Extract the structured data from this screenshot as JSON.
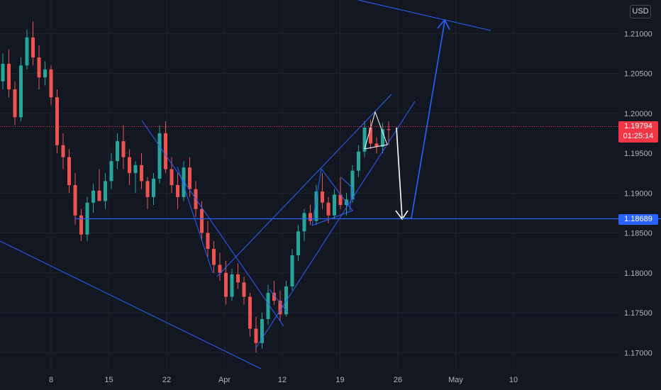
{
  "chart_data": {
    "type": "candlestick",
    "y_axis": {
      "currency": "USD",
      "ylim": [
        1.1678,
        1.2142
      ],
      "ticks": [
        "1.21000",
        "1.20500",
        "1.20000",
        "1.19500",
        "1.19000",
        "1.18500",
        "1.18000",
        "1.17500",
        "1.17000"
      ]
    },
    "x_axis": {
      "ticks": [
        "8",
        "15",
        "22",
        "Apr",
        "12",
        "19",
        "26",
        "May",
        "10"
      ]
    },
    "last_price": {
      "value": "1.19794",
      "countdown": "01:25:14",
      "color": "#f23645"
    },
    "level_price": {
      "value": "1.18689",
      "color": "#2962ff"
    },
    "colors": {
      "up": "#26a69a",
      "down": "#ef5350",
      "drawing": "#2962ff",
      "projection": "#ffffff",
      "background": "#131722"
    },
    "ohlc_approx": [
      [
        1.204,
        1.2075,
        1.203,
        1.2062
      ],
      [
        1.2062,
        1.208,
        1.202,
        1.203
      ],
      [
        1.203,
        1.204,
        1.1985,
        1.1995
      ],
      [
        1.1995,
        1.207,
        1.199,
        1.206
      ],
      [
        1.206,
        1.2105,
        1.2055,
        1.2095
      ],
      [
        1.2095,
        1.2115,
        1.206,
        1.207
      ],
      [
        1.207,
        1.2085,
        1.203,
        1.2045
      ],
      [
        1.2045,
        1.2065,
        1.2035,
        1.2055
      ],
      [
        1.2055,
        1.206,
        1.201,
        1.202
      ],
      [
        1.202,
        1.203,
        1.195,
        1.196
      ],
      [
        1.196,
        1.1975,
        1.193,
        1.1945
      ],
      [
        1.1945,
        1.1955,
        1.19,
        1.191
      ],
      [
        1.191,
        1.1925,
        1.186,
        1.1872
      ],
      [
        1.1872,
        1.188,
        1.184,
        1.1848
      ],
      [
        1.1848,
        1.1895,
        1.184,
        1.1888
      ],
      [
        1.1888,
        1.1912,
        1.1875,
        1.1903
      ],
      [
        1.1903,
        1.193,
        1.189,
        1.189
      ],
      [
        1.189,
        1.1925,
        1.188,
        1.1915
      ],
      [
        1.1915,
        1.195,
        1.1905,
        1.194
      ],
      [
        1.194,
        1.1975,
        1.193,
        1.1965
      ],
      [
        1.1965,
        1.1985,
        1.193,
        1.1945
      ],
      [
        1.1945,
        1.1955,
        1.191,
        1.1925
      ],
      [
        1.1925,
        1.194,
        1.19,
        1.1935
      ],
      [
        1.1935,
        1.195,
        1.1905,
        1.1915
      ],
      [
        1.1915,
        1.192,
        1.188,
        1.1895
      ],
      [
        1.1895,
        1.1925,
        1.1885,
        1.1918
      ],
      [
        1.1918,
        1.1985,
        1.1912,
        1.1975
      ],
      [
        1.1975,
        1.199,
        1.1925,
        1.193
      ],
      [
        1.193,
        1.1945,
        1.19,
        1.191
      ],
      [
        1.191,
        1.1925,
        1.188,
        1.1895
      ],
      [
        1.1895,
        1.194,
        1.189,
        1.1932
      ],
      [
        1.1932,
        1.1945,
        1.1895,
        1.1905
      ],
      [
        1.1905,
        1.1915,
        1.187,
        1.188
      ],
      [
        1.188,
        1.189,
        1.184,
        1.185
      ],
      [
        1.185,
        1.1865,
        1.182,
        1.183
      ],
      [
        1.183,
        1.184,
        1.18,
        1.181
      ],
      [
        1.181,
        1.1825,
        1.179,
        1.18
      ],
      [
        1.18,
        1.1815,
        1.176,
        1.177
      ],
      [
        1.177,
        1.1805,
        1.1765,
        1.1798
      ],
      [
        1.1798,
        1.1812,
        1.178,
        1.1788
      ],
      [
        1.1788,
        1.1795,
        1.176,
        1.177
      ],
      [
        1.177,
        1.1775,
        1.172,
        1.173
      ],
      [
        1.173,
        1.1745,
        1.17,
        1.1712
      ],
      [
        1.1712,
        1.175,
        1.1705,
        1.1742
      ],
      [
        1.1742,
        1.1785,
        1.1735,
        1.1775
      ],
      [
        1.1775,
        1.179,
        1.176,
        1.1765
      ],
      [
        1.1765,
        1.1778,
        1.174,
        1.1748
      ],
      [
        1.1748,
        1.179,
        1.1745,
        1.1783
      ],
      [
        1.1783,
        1.183,
        1.1778,
        1.1822
      ],
      [
        1.1822,
        1.186,
        1.1815,
        1.1852
      ],
      [
        1.1852,
        1.188,
        1.184,
        1.1875
      ],
      [
        1.1875,
        1.1885,
        1.186,
        1.1865
      ],
      [
        1.1865,
        1.191,
        1.186,
        1.1902
      ],
      [
        1.1902,
        1.1925,
        1.188,
        1.1888
      ],
      [
        1.1888,
        1.1895,
        1.1862,
        1.1872
      ],
      [
        1.1872,
        1.1905,
        1.1868,
        1.1898
      ],
      [
        1.1898,
        1.192,
        1.188,
        1.1885
      ],
      [
        1.1885,
        1.19,
        1.1872,
        1.1892
      ],
      [
        1.1892,
        1.1935,
        1.1888,
        1.1928
      ],
      [
        1.1928,
        1.196,
        1.192,
        1.1952
      ],
      [
        1.1952,
        1.199,
        1.1945,
        1.1982
      ],
      [
        1.1982,
        1.1992,
        1.1955,
        1.1962
      ],
      [
        1.1962,
        1.197,
        1.195,
        1.1958
      ],
      [
        1.1958,
        1.1988,
        1.195,
        1.198
      ],
      [
        1.198,
        1.199,
        1.196,
        1.1979
      ]
    ]
  }
}
